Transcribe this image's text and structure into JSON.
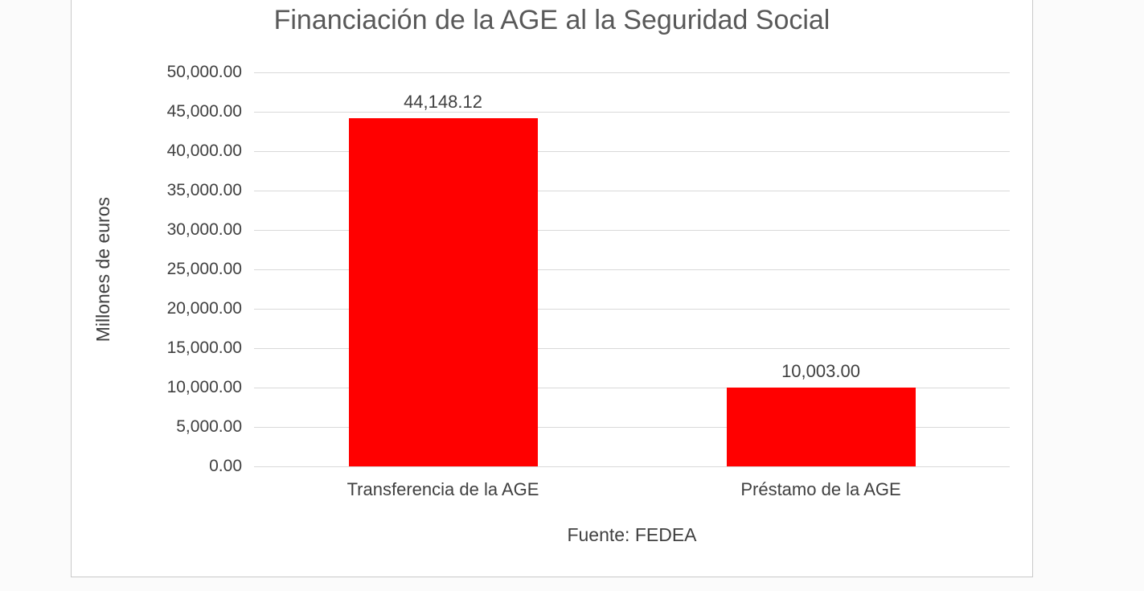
{
  "chart_data": {
    "type": "bar",
    "title": "Financiación de la AGE al la Seguridad Social",
    "ylabel": "Millones de euros",
    "xlabel": "",
    "source": "Fuente: FEDEA",
    "categories": [
      "Transferencia de la AGE",
      "Préstamo de la AGE"
    ],
    "values": [
      44148.12,
      10003.0
    ],
    "value_labels": [
      "44,148.12",
      "10,003.00"
    ],
    "ylim": [
      0,
      50000
    ],
    "ytick_values": [
      0,
      5000,
      10000,
      15000,
      20000,
      25000,
      30000,
      35000,
      40000,
      45000,
      50000
    ],
    "ytick_labels": [
      "0.00",
      "5,000.00",
      "10,000.00",
      "15,000.00",
      "20,000.00",
      "25,000.00",
      "30,000.00",
      "35,000.00",
      "40,000.00",
      "45,000.00",
      "50,000.00"
    ],
    "grid": true,
    "legend_position": "none",
    "bar_color": "#FF0000",
    "gridline_color": "#D9D9D9",
    "text_color": "#404040",
    "title_color": "#595959"
  }
}
